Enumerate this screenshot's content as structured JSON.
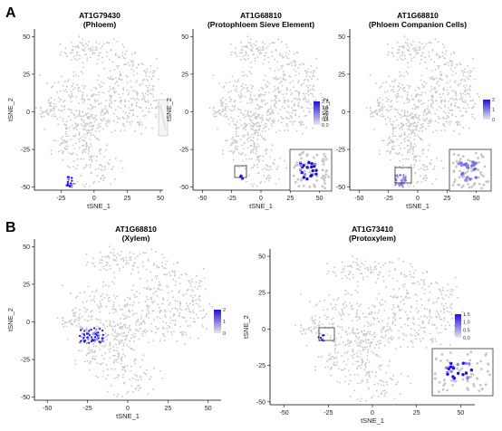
{
  "figure": {
    "panel_letters": [
      "A",
      "B"
    ]
  },
  "colors": {
    "background_cells": "#c6c6c6",
    "expression_low": "#d9d9d9",
    "expression_high": "#1f12d6",
    "inset_border": "#333333"
  },
  "chart_data": [
    {
      "type": "scatter",
      "panel": "A",
      "title": "AT1G79430",
      "subtitle": "(Phloem)",
      "xlabel": "tSNE_1",
      "ylabel": "tSNE_2",
      "xticks": [
        -25,
        0,
        25,
        50
      ],
      "yticks": [
        -50,
        -25,
        0,
        25,
        50
      ],
      "xlim": [
        -45,
        52
      ],
      "ylim": [
        -52,
        55
      ],
      "highlight_region": {
        "x": [
          -21,
          -14
        ],
        "y": [
          -50,
          -43
        ],
        "level": "high"
      },
      "legend": {
        "ticks": [],
        "position": "right"
      },
      "inset": false
    },
    {
      "type": "scatter",
      "panel": "A",
      "title": "AT1G68810",
      "subtitle": "(Protophloem Sieve Element)",
      "xlabel": "tSNE_1",
      "ylabel": "tSNE_2",
      "xticks": [
        -50,
        -25,
        0,
        25,
        50
      ],
      "yticks": [
        -50,
        -25,
        0,
        25,
        50
      ],
      "xlim": [
        -58,
        58
      ],
      "ylim": [
        -52,
        55
      ],
      "highlight_region": {
        "x": [
          -18,
          -14
        ],
        "y": [
          -46,
          -42
        ],
        "level": "high"
      },
      "legend": {
        "ticks": [
          "2.0",
          "1.5",
          "1.0",
          "0.5",
          "0.0"
        ],
        "position": "right"
      },
      "inset": true
    },
    {
      "type": "scatter",
      "panel": "A",
      "title": "AT1G68810",
      "subtitle": "(Phloem Companion Cells)",
      "xlabel": "tSNE_1",
      "ylabel": "tSNE_2",
      "xticks": [
        -50,
        -25,
        0,
        25,
        50
      ],
      "yticks": [
        -50,
        -25,
        0,
        25,
        50
      ],
      "xlim": [
        -58,
        58
      ],
      "ylim": [
        -52,
        55
      ],
      "highlight_region": {
        "x": [
          -20,
          -10
        ],
        "y": [
          -50,
          -42
        ],
        "level": "medium"
      },
      "legend": {
        "ticks": [
          "2",
          "1",
          "0"
        ],
        "position": "right"
      },
      "inset": true
    },
    {
      "type": "scatter",
      "panel": "B",
      "title": "AT1G68810",
      "subtitle": "(Xylem)",
      "xlabel": "tSNE_1",
      "ylabel": "tSNE_2",
      "xticks": [
        -50,
        -25,
        0,
        25,
        50
      ],
      "yticks": [
        -50,
        -25,
        0,
        25,
        50
      ],
      "xlim": [
        -58,
        58
      ],
      "ylim": [
        -52,
        55
      ],
      "highlight_region": {
        "x": [
          -30,
          -15
        ],
        "y": [
          -14,
          -4
        ],
        "level": "high"
      },
      "legend": {
        "ticks": [
          "2",
          "1",
          "0"
        ],
        "position": "right"
      },
      "inset": false
    },
    {
      "type": "scatter",
      "panel": "B",
      "title": "AT1G73410",
      "subtitle": "(Protoxylem)",
      "xlabel": "tSNE_1",
      "ylabel": "tSNE_2",
      "xticks": [
        -50,
        -25,
        0,
        25,
        50
      ],
      "yticks": [
        -50,
        -25,
        0,
        25,
        50
      ],
      "xlim": [
        -58,
        58
      ],
      "ylim": [
        -52,
        55
      ],
      "highlight_region": {
        "x": [
          -31,
          -27
        ],
        "y": [
          -8,
          -4
        ],
        "level": "high"
      },
      "legend": {
        "ticks": [
          "1.5",
          "1.0",
          "0.5",
          "0.0"
        ],
        "position": "right"
      },
      "inset": true
    }
  ]
}
